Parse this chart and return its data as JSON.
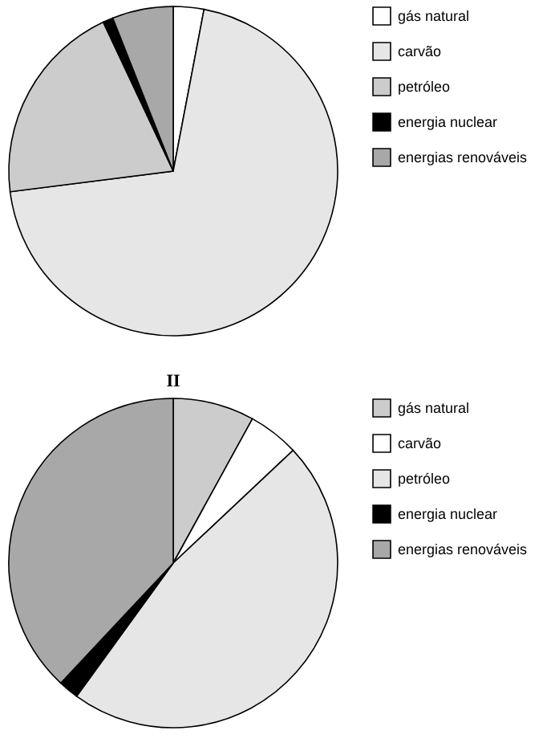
{
  "chart_data": [
    {
      "type": "pie",
      "categories": [
        "gás natural",
        "carvão",
        "petróleo",
        "energia nuclear",
        "energias renováveis"
      ],
      "values": [
        3,
        70,
        20,
        1,
        6
      ],
      "colors": [
        "#ffffff",
        "#e6e6e6",
        "#cccccc",
        "#000000",
        "#a8a8a8"
      ],
      "legend": "right"
    },
    {
      "type": "pie",
      "title": "II",
      "categories": [
        "gás natural",
        "carvão",
        "petróleo",
        "energia nuclear",
        "energias renováveis"
      ],
      "values": [
        8,
        5,
        47,
        2,
        38
      ],
      "colors": [
        "#cccccc",
        "#ffffff",
        "#e6e6e6",
        "#000000",
        "#a8a8a8"
      ],
      "legend": "right"
    }
  ]
}
